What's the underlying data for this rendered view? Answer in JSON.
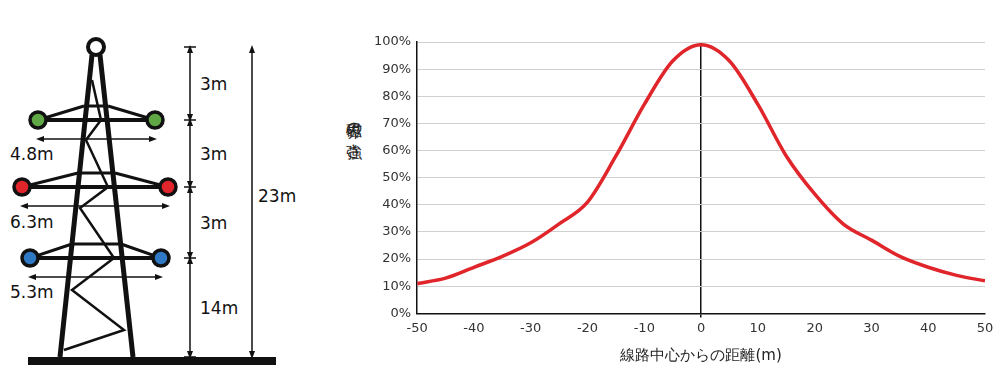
{
  "diagram": {
    "arms": [
      {
        "color": "#5fa845",
        "width": "4.8m"
      },
      {
        "color": "#e0262b",
        "width": "6.3m"
      },
      {
        "color": "#2f78c4",
        "width": "5.3m"
      }
    ],
    "vertical_dimensions": [
      "3m",
      "3m",
      "3m",
      "14m"
    ],
    "total_height": "23m"
  },
  "chart_data": {
    "type": "line",
    "x_label": "線路中心からの距離(m)",
    "y_label": "磁界の強さ",
    "x": [
      -50,
      -45,
      -40,
      -35,
      -30,
      -25,
      -20,
      -15,
      -10,
      -5,
      0,
      5,
      10,
      15,
      20,
      25,
      30,
      35,
      40,
      45,
      50
    ],
    "values": [
      11,
      13,
      17,
      21,
      26,
      33,
      41,
      58,
      77,
      93,
      99,
      93,
      77,
      58,
      44,
      33,
      27,
      21,
      17,
      14,
      12
    ],
    "color": "#e0262b",
    "xlim": [
      -50,
      50
    ],
    "xticks": [
      -50,
      -40,
      -30,
      -20,
      -10,
      0,
      10,
      20,
      30,
      40,
      50
    ],
    "ylim": [
      0,
      100
    ],
    "yticks": [
      {
        "value": 0,
        "label": "0%"
      },
      {
        "value": 10,
        "label": "10%"
      },
      {
        "value": 20,
        "label": "20%"
      },
      {
        "value": 30,
        "label": "30%"
      },
      {
        "value": 40,
        "label": "40%"
      },
      {
        "value": 50,
        "label": "50%"
      },
      {
        "value": 60,
        "label": "60%"
      },
      {
        "value": 70,
        "label": "70%"
      },
      {
        "value": 80,
        "label": "80%"
      },
      {
        "value": 90,
        "label": "90%"
      },
      {
        "value": 100,
        "label": "100%"
      }
    ],
    "grid": true
  }
}
